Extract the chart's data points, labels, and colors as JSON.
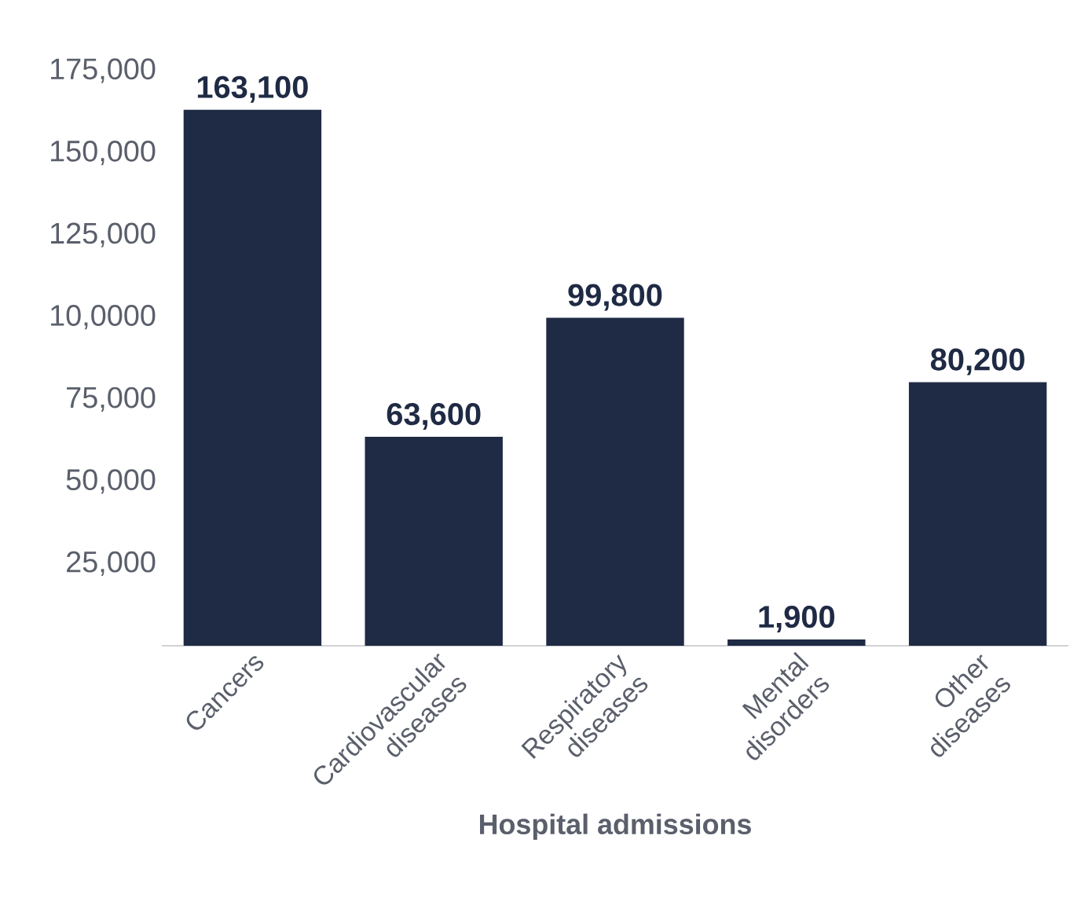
{
  "chart_data": {
    "type": "bar",
    "xlabel": "Hospital admissions",
    "categories": [
      "Cancers",
      "Cardiovascular diseases",
      "Respiratory diseases",
      "Mental disorders",
      "Other diseases"
    ],
    "values": [
      163100,
      63600,
      99800,
      1900,
      80200
    ],
    "value_labels": [
      "163,100",
      "63,600",
      "99,800",
      "1,900",
      "80,200"
    ],
    "color": "#1f2a44",
    "ylim": [
      0,
      175000
    ],
    "yticks": [
      {
        "value": 25000,
        "label": "25,000"
      },
      {
        "value": 50000,
        "label": "50,000"
      },
      {
        "value": 75000,
        "label": "75,000"
      },
      {
        "value": 100000,
        "label": "10,0000"
      },
      {
        "value": 125000,
        "label": "125,000"
      },
      {
        "value": 150000,
        "label": "150,000"
      },
      {
        "value": 175000,
        "label": "175,000"
      }
    ],
    "grid": false
  }
}
